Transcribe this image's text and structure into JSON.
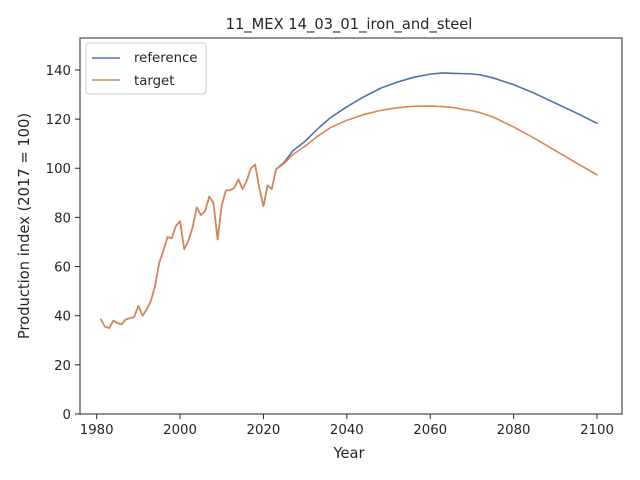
{
  "chart_data": {
    "type": "line",
    "title": "11_MEX 14_03_01_iron_and_steel",
    "xlabel": "Year",
    "ylabel": "Production index (2017 = 100)",
    "xlim": [
      1976,
      2106
    ],
    "ylim": [
      0,
      153
    ],
    "xticks": [
      1980,
      2000,
      2020,
      2040,
      2060,
      2080,
      2100
    ],
    "yticks": [
      0,
      20,
      40,
      60,
      80,
      100,
      120,
      140
    ],
    "grid": false,
    "legend_position": "upper-left",
    "series": [
      {
        "name": "reference",
        "color": "#4c72b0",
        "x": [
          1981,
          1982,
          1983,
          1984,
          1985,
          1986,
          1987,
          1988,
          1989,
          1990,
          1991,
          1992,
          1993,
          1994,
          1995,
          1996,
          1997,
          1998,
          1999,
          2000,
          2001,
          2002,
          2003,
          2004,
          2005,
          2006,
          2007,
          2008,
          2009,
          2010,
          2011,
          2012,
          2013,
          2014,
          2015,
          2016,
          2017,
          2018,
          2019,
          2020,
          2021,
          2022,
          2023,
          2025,
          2027,
          2030,
          2033,
          2036,
          2040,
          2044,
          2048,
          2052,
          2056,
          2060,
          2063,
          2066,
          2068,
          2070,
          2072,
          2075,
          2080,
          2085,
          2090,
          2095,
          2100
        ],
        "y": [
          38.5,
          35.5,
          35,
          38,
          37,
          36.5,
          38.5,
          39,
          39.5,
          44,
          40,
          42.5,
          46,
          52,
          61.5,
          66.5,
          72,
          71.5,
          76.5,
          78.5,
          67,
          70.5,
          76,
          84,
          81,
          82.5,
          88.5,
          86,
          71,
          85,
          91,
          91,
          92,
          95.5,
          91.5,
          95,
          100,
          101.5,
          92,
          84.5,
          93,
          91.5,
          99.5,
          102.5,
          107,
          111,
          116,
          120.5,
          125,
          129,
          132.5,
          135,
          137,
          138.3,
          138.8,
          138.6,
          138.5,
          138.4,
          138,
          136.8,
          134,
          130.5,
          126.5,
          122.5,
          118.3
        ]
      },
      {
        "name": "target",
        "color": "#dd8452",
        "x": [
          1981,
          1982,
          1983,
          1984,
          1985,
          1986,
          1987,
          1988,
          1989,
          1990,
          1991,
          1992,
          1993,
          1994,
          1995,
          1996,
          1997,
          1998,
          1999,
          2000,
          2001,
          2002,
          2003,
          2004,
          2005,
          2006,
          2007,
          2008,
          2009,
          2010,
          2011,
          2012,
          2013,
          2014,
          2015,
          2016,
          2017,
          2018,
          2019,
          2020,
          2021,
          2022,
          2023,
          2025,
          2027,
          2030,
          2033,
          2036,
          2040,
          2044,
          2048,
          2052,
          2056,
          2060,
          2063,
          2066,
          2068,
          2070,
          2072,
          2075,
          2080,
          2085,
          2090,
          2095,
          2100
        ],
        "y": [
          38.5,
          35.5,
          35,
          38,
          37,
          36.5,
          38.5,
          39,
          39.5,
          44,
          40,
          42.5,
          46,
          52,
          61.5,
          66.5,
          72,
          71.5,
          76.5,
          78.5,
          67,
          70.5,
          76,
          84,
          81,
          82.5,
          88.5,
          86,
          71,
          85,
          91,
          91,
          92,
          95.5,
          91.5,
          95,
          100,
          101.5,
          92,
          84.5,
          93,
          91.5,
          99.5,
          102,
          105.5,
          109,
          113,
          116.5,
          119.5,
          121.8,
          123.5,
          124.6,
          125.2,
          125.3,
          125.1,
          124.6,
          123.9,
          123.4,
          122.6,
          120.9,
          116.8,
          112.2,
          107.2,
          102.2,
          97.3
        ]
      }
    ]
  }
}
